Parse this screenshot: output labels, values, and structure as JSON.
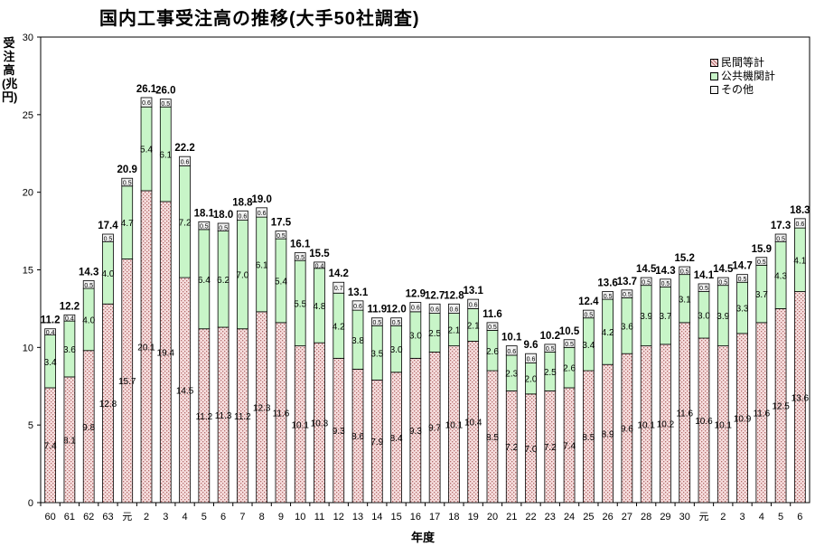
{
  "title": "国内工事受注高の推移(大手50社調査)",
  "ylabel": "受注高(兆円)",
  "xlabel": "年度",
  "legend": [
    {
      "name": "民間等計",
      "color": "#e8c4c4"
    },
    {
      "name": "公共機関計",
      "color": "#c8f5c8"
    },
    {
      "name": "その他",
      "color": "#f2f2f2"
    }
  ],
  "chart_data": {
    "type": "bar",
    "stacked": true,
    "ylim": [
      0,
      30
    ],
    "yticks": [
      0,
      5,
      10,
      15,
      20,
      25,
      30
    ],
    "categories": [
      "60",
      "61",
      "62",
      "63",
      "元",
      "2",
      "3",
      "4",
      "5",
      "6",
      "7",
      "8",
      "9",
      "10",
      "11",
      "12",
      "13",
      "14",
      "15",
      "16",
      "17",
      "18",
      "19",
      "20",
      "21",
      "22",
      "23",
      "24",
      "25",
      "26",
      "27",
      "28",
      "29",
      "30",
      "元",
      "2",
      "3",
      "4",
      "5",
      "6"
    ],
    "series": [
      {
        "name": "民間等計",
        "values": [
          7.4,
          8.1,
          9.8,
          12.8,
          15.7,
          20.1,
          19.4,
          14.5,
          11.2,
          11.3,
          11.2,
          12.3,
          11.6,
          10.1,
          10.3,
          9.3,
          8.6,
          7.9,
          8.4,
          9.3,
          9.7,
          10.1,
          10.4,
          8.5,
          7.2,
          7.0,
          7.2,
          7.4,
          8.5,
          8.9,
          9.6,
          10.1,
          10.2,
          11.6,
          10.6,
          10.1,
          10.9,
          11.6,
          12.5,
          13.6
        ]
      },
      {
        "name": "公共機関計",
        "values": [
          3.4,
          3.6,
          4.0,
          4.0,
          4.7,
          5.4,
          6.1,
          7.2,
          6.4,
          6.2,
          7.0,
          6.1,
          5.4,
          5.5,
          4.8,
          4.2,
          3.8,
          3.5,
          3.0,
          3.0,
          2.5,
          2.1,
          2.1,
          2.6,
          2.3,
          2.0,
          2.5,
          2.6,
          3.4,
          4.2,
          3.6,
          3.9,
          3.7,
          3.1,
          3.0,
          3.9,
          3.3,
          3.7,
          4.3,
          4.1
        ]
      },
      {
        "name": "その他",
        "values": [
          0.4,
          0.4,
          0.5,
          0.5,
          0.5,
          0.6,
          0.5,
          0.6,
          0.5,
          0.5,
          0.6,
          0.6,
          0.5,
          0.5,
          0.4,
          0.7,
          0.6,
          0.5,
          0.5,
          0.6,
          0.6,
          0.6,
          0.6,
          0.5,
          0.6,
          0.6,
          0.5,
          0.5,
          0.5,
          0.5,
          0.5,
          0.5,
          0.5,
          0.5,
          0.5,
          0.5,
          0.5,
          0.5,
          0.5,
          0.6
        ]
      }
    ],
    "totals": [
      11.2,
      12.2,
      14.3,
      17.4,
      20.9,
      26.1,
      26.0,
      22.2,
      18.1,
      18.0,
      18.8,
      19.0,
      17.5,
      16.1,
      15.5,
      14.2,
      13.1,
      11.9,
      12.0,
      12.9,
      12.7,
      12.8,
      13.1,
      11.6,
      10.1,
      9.6,
      10.2,
      10.5,
      12.4,
      13.6,
      13.7,
      14.5,
      14.3,
      15.2,
      14.1,
      14.5,
      14.7,
      15.9,
      17.3,
      18.3
    ],
    "grid": false,
    "legend_position": "top-right"
  }
}
